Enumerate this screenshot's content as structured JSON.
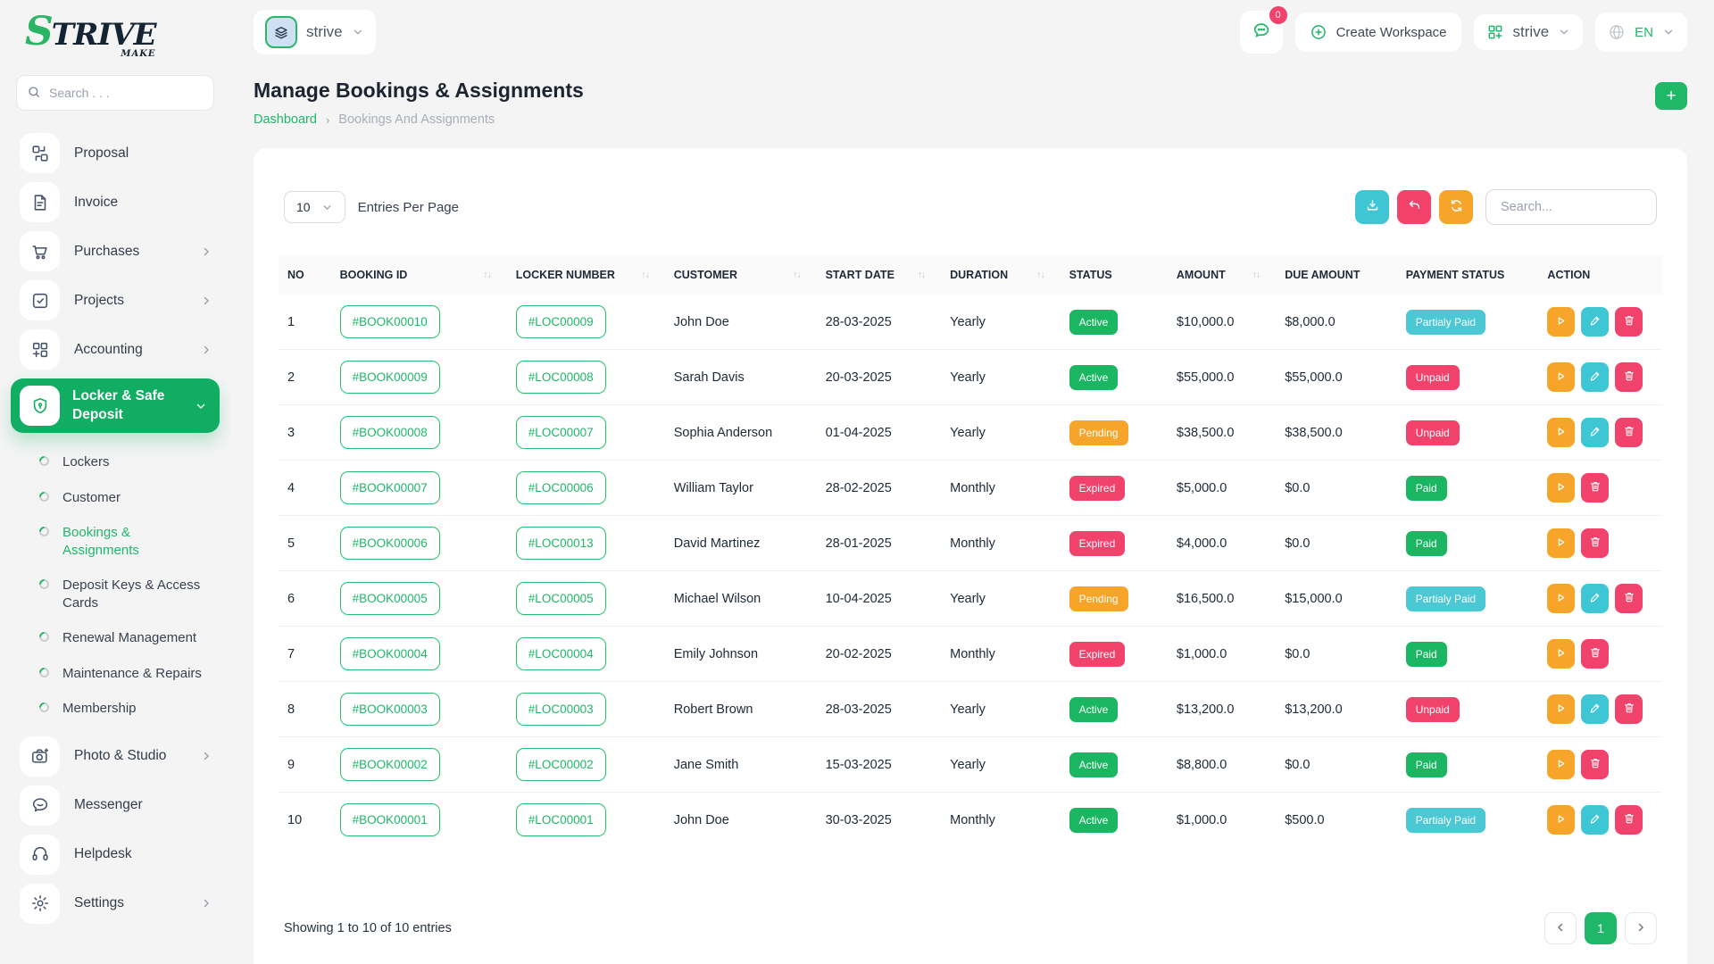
{
  "brand": {
    "logo_s": "S",
    "logo_rest": "TRIVE",
    "logo_sub": "MAKE"
  },
  "header": {
    "workspace_name": "strive",
    "chat_badge": "0",
    "create_workspace_label": "Create Workspace",
    "org_name": "strive",
    "language": "EN"
  },
  "sidebar": {
    "search_placeholder": "Search . . .",
    "items": [
      {
        "label": "Proposal",
        "icon": "proposal-icon",
        "chevron": false
      },
      {
        "label": "Invoice",
        "icon": "invoice-icon",
        "chevron": false
      },
      {
        "label": "Purchases",
        "icon": "purchases-cart-icon",
        "chevron": true
      },
      {
        "label": "Projects",
        "icon": "projects-icon",
        "chevron": true
      },
      {
        "label": "Accounting",
        "icon": "accounting-icon",
        "chevron": true
      },
      {
        "label": "Locker & Safe Deposit",
        "icon": "locker-shield-icon",
        "chevron": true,
        "active": true,
        "expanded": true,
        "subitems": [
          {
            "label": "Lockers"
          },
          {
            "label": "Customer"
          },
          {
            "label": "Bookings & Assignments",
            "active": true
          },
          {
            "label": "Deposit Keys & Access Cards"
          },
          {
            "label": "Renewal Management"
          },
          {
            "label": "Maintenance & Repairs"
          },
          {
            "label": "Membership"
          }
        ]
      },
      {
        "label": "Photo & Studio",
        "icon": "camera-icon",
        "chevron": true
      },
      {
        "label": "Messenger",
        "icon": "messenger-icon",
        "chevron": false
      },
      {
        "label": "Helpdesk",
        "icon": "headset-icon",
        "chevron": false
      },
      {
        "label": "Settings",
        "icon": "gear-icon",
        "chevron": true
      }
    ]
  },
  "page": {
    "title": "Manage Bookings & Assignments",
    "breadcrumb": {
      "home": "Dashboard",
      "current": "Bookings And Assignments"
    }
  },
  "table_card": {
    "entries_value": "10",
    "entries_label": "Entries Per Page",
    "search_placeholder": "Search...",
    "columns": [
      {
        "label": "NO",
        "sortable": false
      },
      {
        "label": "BOOKING ID",
        "sortable": true
      },
      {
        "label": "LOCKER NUMBER",
        "sortable": true
      },
      {
        "label": "CUSTOMER",
        "sortable": true
      },
      {
        "label": "START DATE",
        "sortable": true
      },
      {
        "label": "DURATION",
        "sortable": true
      },
      {
        "label": "STATUS",
        "sortable": false
      },
      {
        "label": "AMOUNT",
        "sortable": true
      },
      {
        "label": "DUE AMOUNT",
        "sortable": false
      },
      {
        "label": "PAYMENT STATUS",
        "sortable": false
      },
      {
        "label": "ACTION",
        "sortable": false
      }
    ],
    "rows": [
      {
        "no": "1",
        "booking_id": "#BOOK00010",
        "locker": "#LOC00009",
        "customer": "John Doe",
        "start_date": "28-03-2025",
        "duration": "Yearly",
        "status": "Active",
        "amount": "$10,000.0",
        "due": "$8,000.0",
        "payment": "Partialy Paid",
        "actions": [
          "view",
          "edit",
          "delete"
        ]
      },
      {
        "no": "2",
        "booking_id": "#BOOK00009",
        "locker": "#LOC00008",
        "customer": "Sarah Davis",
        "start_date": "20-03-2025",
        "duration": "Yearly",
        "status": "Active",
        "amount": "$55,000.0",
        "due": "$55,000.0",
        "payment": "Unpaid",
        "actions": [
          "view",
          "edit",
          "delete"
        ]
      },
      {
        "no": "3",
        "booking_id": "#BOOK00008",
        "locker": "#LOC00007",
        "customer": "Sophia Anderson",
        "start_date": "01-04-2025",
        "duration": "Yearly",
        "status": "Pending",
        "amount": "$38,500.0",
        "due": "$38,500.0",
        "payment": "Unpaid",
        "actions": [
          "view",
          "edit",
          "delete"
        ]
      },
      {
        "no": "4",
        "booking_id": "#BOOK00007",
        "locker": "#LOC00006",
        "customer": "William Taylor",
        "start_date": "28-02-2025",
        "duration": "Monthly",
        "status": "Expired",
        "amount": "$5,000.0",
        "due": "$0.0",
        "payment": "Paid",
        "actions": [
          "view",
          "delete"
        ]
      },
      {
        "no": "5",
        "booking_id": "#BOOK00006",
        "locker": "#LOC00013",
        "customer": "David Martinez",
        "start_date": "28-01-2025",
        "duration": "Monthly",
        "status": "Expired",
        "amount": "$4,000.0",
        "due": "$0.0",
        "payment": "Paid",
        "actions": [
          "view",
          "delete"
        ]
      },
      {
        "no": "6",
        "booking_id": "#BOOK00005",
        "locker": "#LOC00005",
        "customer": "Michael Wilson",
        "start_date": "10-04-2025",
        "duration": "Yearly",
        "status": "Pending",
        "amount": "$16,500.0",
        "due": "$15,000.0",
        "payment": "Partialy Paid",
        "actions": [
          "view",
          "edit",
          "delete"
        ]
      },
      {
        "no": "7",
        "booking_id": "#BOOK00004",
        "locker": "#LOC00004",
        "customer": "Emily Johnson",
        "start_date": "20-02-2025",
        "duration": "Monthly",
        "status": "Expired",
        "amount": "$1,000.0",
        "due": "$0.0",
        "payment": "Paid",
        "actions": [
          "view",
          "delete"
        ]
      },
      {
        "no": "8",
        "booking_id": "#BOOK00003",
        "locker": "#LOC00003",
        "customer": "Robert Brown",
        "start_date": "28-03-2025",
        "duration": "Yearly",
        "status": "Active",
        "amount": "$13,200.0",
        "due": "$13,200.0",
        "payment": "Unpaid",
        "actions": [
          "view",
          "edit",
          "delete"
        ]
      },
      {
        "no": "9",
        "booking_id": "#BOOK00002",
        "locker": "#LOC00002",
        "customer": "Jane Smith",
        "start_date": "15-03-2025",
        "duration": "Yearly",
        "status": "Active",
        "amount": "$8,800.0",
        "due": "$0.0",
        "payment": "Paid",
        "actions": [
          "view",
          "delete"
        ]
      },
      {
        "no": "10",
        "booking_id": "#BOOK00001",
        "locker": "#LOC00001",
        "customer": "John Doe",
        "start_date": "30-03-2025",
        "duration": "Monthly",
        "status": "Active",
        "amount": "$1,000.0",
        "due": "$500.0",
        "payment": "Partialy Paid",
        "actions": [
          "view",
          "edit",
          "delete"
        ]
      }
    ],
    "status_colors": {
      "Active": "#1bb662",
      "Pending": "#f7a52a",
      "Expired": "#f1426c",
      "Paid": "#1bb662",
      "Unpaid": "#f1426c",
      "Partialy Paid": "#4cc7d4"
    },
    "footer": {
      "showing_text": "Showing 1 to 10 of 10 entries",
      "current_page": "1"
    }
  },
  "colors": {
    "accent_green": "#1fb768",
    "pink": "#f1426c",
    "orange": "#f7a52a",
    "cyan": "#3ec6d4"
  }
}
